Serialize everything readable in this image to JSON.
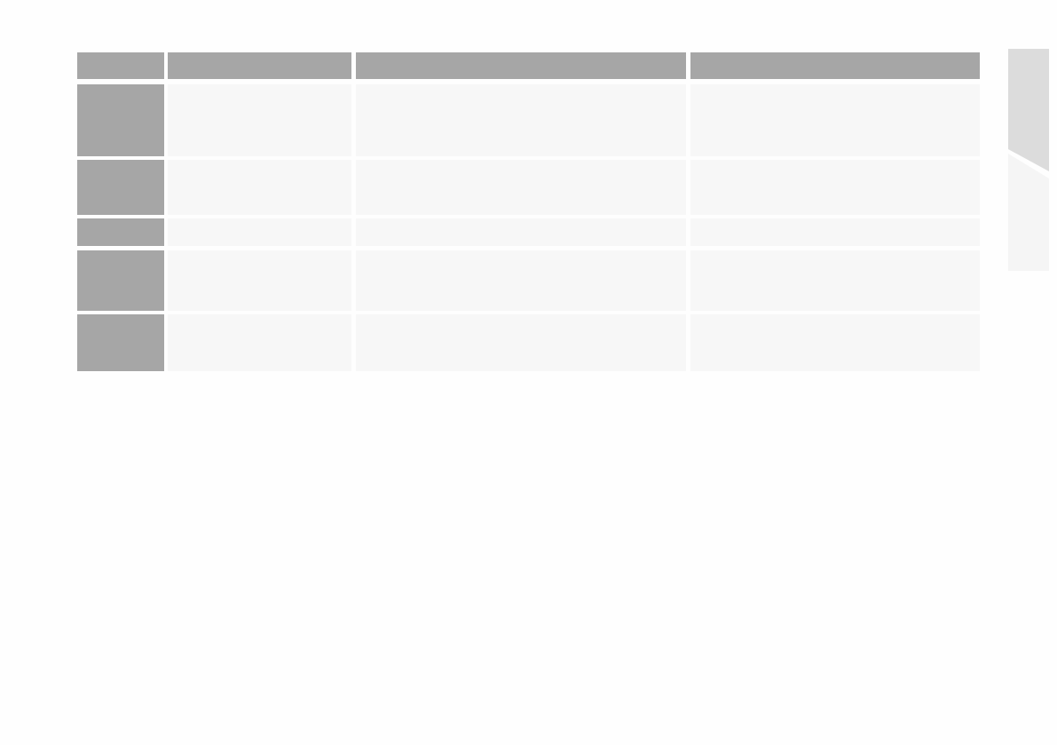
{
  "colors": {
    "header": "#a6a6a6",
    "row_stub": "#a6a6a6",
    "cell": "#f7f7f7",
    "side_tab_top": "#dcdcdc",
    "side_tab_bottom": "#f5f5f5"
  },
  "table": {
    "columns": [
      "",
      "",
      "",
      ""
    ],
    "rows": [
      [
        "",
        "",
        "",
        ""
      ],
      [
        "",
        "",
        "",
        ""
      ],
      [
        "",
        "",
        "",
        ""
      ],
      [
        "",
        "",
        "",
        ""
      ],
      [
        "",
        "",
        "",
        ""
      ]
    ]
  }
}
